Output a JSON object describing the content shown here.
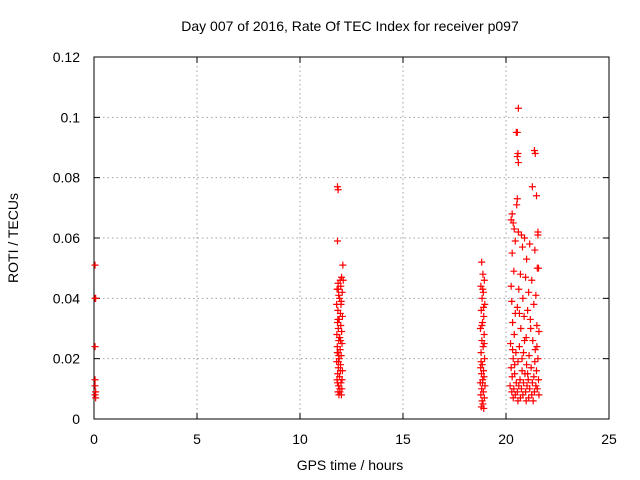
{
  "chart_data": {
    "type": "scatter",
    "title": "Day 007 of 2016, Rate Of TEC Index for receiver p097",
    "xlabel": "GPS time / hours",
    "ylabel": "ROTI / TECUs",
    "xlim": [
      0,
      25
    ],
    "ylim": [
      0,
      0.12
    ],
    "xticks": [
      0,
      5,
      10,
      15,
      20,
      25
    ],
    "xtick_labels": [
      "0",
      "5",
      "10",
      "15",
      "20",
      "25"
    ],
    "yticks": [
      0,
      0.02,
      0.04,
      0.06,
      0.08,
      0.1,
      0.12
    ],
    "ytick_labels": [
      "0",
      "0.02",
      "0.04",
      "0.06",
      "0.08",
      "0.1",
      "0.12"
    ],
    "grid": true,
    "marker": "+",
    "marker_color": "#ff0000",
    "series": [
      {
        "name": "ROTI",
        "points": [
          [
            0.05,
            0.051
          ],
          [
            0.05,
            0.04
          ],
          [
            0.08,
            0.04
          ],
          [
            0.05,
            0.024
          ],
          [
            0.05,
            0.013
          ],
          [
            0.05,
            0.011
          ],
          [
            0.08,
            0.009
          ],
          [
            0.05,
            0.008
          ],
          [
            0.08,
            0.007
          ],
          [
            11.82,
            0.077
          ],
          [
            11.85,
            0.076
          ],
          [
            11.82,
            0.059
          ],
          [
            12.08,
            0.051
          ],
          [
            12.02,
            0.047
          ],
          [
            11.95,
            0.046
          ],
          [
            12.1,
            0.046
          ],
          [
            11.85,
            0.045
          ],
          [
            11.98,
            0.044
          ],
          [
            11.8,
            0.043
          ],
          [
            12.05,
            0.042
          ],
          [
            11.88,
            0.041
          ],
          [
            11.92,
            0.04
          ],
          [
            12.0,
            0.039
          ],
          [
            11.78,
            0.038
          ],
          [
            11.84,
            0.036
          ],
          [
            11.96,
            0.035
          ],
          [
            12.06,
            0.034
          ],
          [
            11.9,
            0.033
          ],
          [
            11.82,
            0.032
          ],
          [
            11.98,
            0.031
          ],
          [
            11.86,
            0.03
          ],
          [
            12.02,
            0.029
          ],
          [
            11.79,
            0.028
          ],
          [
            11.93,
            0.027
          ],
          [
            11.88,
            0.026
          ],
          [
            12.04,
            0.025
          ],
          [
            11.81,
            0.024
          ],
          [
            11.95,
            0.023
          ],
          [
            11.85,
            0.022
          ],
          [
            12.0,
            0.021
          ],
          [
            11.9,
            0.02
          ],
          [
            11.78,
            0.019
          ],
          [
            11.97,
            0.018
          ],
          [
            11.86,
            0.017
          ],
          [
            12.06,
            0.016
          ],
          [
            11.83,
            0.015
          ],
          [
            11.92,
            0.014
          ],
          [
            11.8,
            0.013
          ],
          [
            11.99,
            0.012
          ],
          [
            11.87,
            0.011
          ],
          [
            12.03,
            0.01
          ],
          [
            11.84,
            0.009
          ],
          [
            11.94,
            0.009
          ],
          [
            11.89,
            0.008
          ],
          [
            12.01,
            0.008
          ],
          [
            11.82,
            0.012
          ],
          [
            11.96,
            0.016
          ],
          [
            11.88,
            0.021
          ],
          [
            11.91,
            0.027
          ],
          [
            11.84,
            0.033
          ],
          [
            11.99,
            0.038
          ],
          [
            11.86,
            0.043
          ],
          [
            12.04,
            0.013
          ],
          [
            11.93,
            0.01
          ],
          [
            11.81,
            0.022
          ],
          [
            11.97,
            0.026
          ],
          [
            11.87,
            0.019
          ],
          [
            18.82,
            0.052
          ],
          [
            18.88,
            0.048
          ],
          [
            18.95,
            0.046
          ],
          [
            18.78,
            0.044
          ],
          [
            18.9,
            0.042
          ],
          [
            18.84,
            0.04
          ],
          [
            18.97,
            0.038
          ],
          [
            18.8,
            0.036
          ],
          [
            18.92,
            0.034
          ],
          [
            18.86,
            0.032
          ],
          [
            18.76,
            0.03
          ],
          [
            18.94,
            0.028
          ],
          [
            18.83,
            0.026
          ],
          [
            18.89,
            0.024
          ],
          [
            18.79,
            0.022
          ],
          [
            18.96,
            0.02
          ],
          [
            18.85,
            0.018
          ],
          [
            18.77,
            0.017
          ],
          [
            18.91,
            0.016
          ],
          [
            18.81,
            0.015
          ],
          [
            18.93,
            0.014
          ],
          [
            18.87,
            0.013
          ],
          [
            18.75,
            0.012
          ],
          [
            18.98,
            0.011
          ],
          [
            18.82,
            0.01
          ],
          [
            18.9,
            0.009
          ],
          [
            18.78,
            0.008
          ],
          [
            18.95,
            0.007
          ],
          [
            18.84,
            0.006
          ],
          [
            18.88,
            0.005
          ],
          [
            18.8,
            0.004
          ],
          [
            18.92,
            0.0035
          ],
          [
            18.86,
            0.012
          ],
          [
            18.79,
            0.019
          ],
          [
            18.94,
            0.025
          ],
          [
            18.83,
            0.031
          ],
          [
            18.91,
            0.037
          ],
          [
            18.87,
            0.043
          ],
          [
            20.6,
            0.103
          ],
          [
            20.55,
            0.095
          ],
          [
            20.5,
            0.095
          ],
          [
            20.58,
            0.088
          ],
          [
            20.55,
            0.087
          ],
          [
            20.6,
            0.085
          ],
          [
            21.38,
            0.089
          ],
          [
            21.42,
            0.088
          ],
          [
            21.28,
            0.077
          ],
          [
            21.48,
            0.074
          ],
          [
            20.55,
            0.073
          ],
          [
            20.52,
            0.071
          ],
          [
            20.3,
            0.068
          ],
          [
            20.25,
            0.066
          ],
          [
            20.35,
            0.065
          ],
          [
            20.4,
            0.063
          ],
          [
            20.6,
            0.062
          ],
          [
            21.55,
            0.062
          ],
          [
            21.55,
            0.061
          ],
          [
            20.75,
            0.061
          ],
          [
            20.9,
            0.06
          ],
          [
            20.45,
            0.059
          ],
          [
            21.15,
            0.058
          ],
          [
            20.8,
            0.057
          ],
          [
            21.4,
            0.056
          ],
          [
            20.3,
            0.055
          ],
          [
            21.0,
            0.053
          ],
          [
            21.52,
            0.05
          ],
          [
            21.58,
            0.05
          ],
          [
            20.38,
            0.049
          ],
          [
            20.7,
            0.048
          ],
          [
            20.95,
            0.047
          ],
          [
            21.25,
            0.046
          ],
          [
            20.25,
            0.044
          ],
          [
            20.62,
            0.043
          ],
          [
            21.1,
            0.042
          ],
          [
            21.45,
            0.041
          ],
          [
            20.82,
            0.04
          ],
          [
            20.28,
            0.039
          ],
          [
            21.35,
            0.038
          ],
          [
            20.55,
            0.037
          ],
          [
            21.05,
            0.036
          ],
          [
            20.45,
            0.035
          ],
          [
            20.88,
            0.034
          ],
          [
            21.18,
            0.033
          ],
          [
            20.32,
            0.032
          ],
          [
            21.5,
            0.031
          ],
          [
            20.72,
            0.03
          ],
          [
            21.6,
            0.029
          ],
          [
            20.4,
            0.028
          ],
          [
            20.98,
            0.027
          ],
          [
            21.3,
            0.026
          ],
          [
            20.22,
            0.025
          ],
          [
            20.65,
            0.024
          ],
          [
            21.42,
            0.023
          ],
          [
            20.85,
            0.022
          ],
          [
            21.12,
            0.021
          ],
          [
            20.35,
            0.02
          ],
          [
            21.55,
            0.02
          ],
          [
            20.58,
            0.019
          ],
          [
            21.0,
            0.018
          ],
          [
            20.25,
            0.017
          ],
          [
            21.22,
            0.017
          ],
          [
            20.78,
            0.016
          ],
          [
            21.48,
            0.016
          ],
          [
            20.42,
            0.015
          ],
          [
            20.92,
            0.015
          ],
          [
            21.35,
            0.014
          ],
          [
            20.3,
            0.014
          ],
          [
            20.68,
            0.013
          ],
          [
            21.08,
            0.013
          ],
          [
            21.58,
            0.013
          ],
          [
            20.5,
            0.012
          ],
          [
            20.85,
            0.012
          ],
          [
            21.28,
            0.012
          ],
          [
            20.2,
            0.011
          ],
          [
            20.62,
            0.011
          ],
          [
            21.02,
            0.011
          ],
          [
            21.45,
            0.011
          ],
          [
            20.38,
            0.01
          ],
          [
            20.75,
            0.01
          ],
          [
            21.15,
            0.01
          ],
          [
            21.52,
            0.01
          ],
          [
            20.28,
            0.009
          ],
          [
            20.55,
            0.009
          ],
          [
            20.95,
            0.009
          ],
          [
            21.38,
            0.009
          ],
          [
            20.45,
            0.008
          ],
          [
            20.82,
            0.008
          ],
          [
            21.25,
            0.008
          ],
          [
            21.6,
            0.008
          ],
          [
            20.35,
            0.007
          ],
          [
            20.7,
            0.007
          ],
          [
            21.1,
            0.007
          ],
          [
            20.58,
            0.006
          ],
          [
            20.98,
            0.006
          ],
          [
            21.32,
            0.006
          ],
          [
            20.48,
            0.022
          ],
          [
            20.9,
            0.026
          ],
          [
            21.2,
            0.03
          ],
          [
            20.65,
            0.035
          ],
          [
            21.4,
            0.019
          ],
          [
            20.32,
            0.023
          ],
          [
            21.05,
            0.015
          ],
          [
            20.78,
            0.02
          ],
          [
            21.5,
            0.024
          ],
          [
            20.42,
            0.018
          ]
        ]
      }
    ]
  }
}
